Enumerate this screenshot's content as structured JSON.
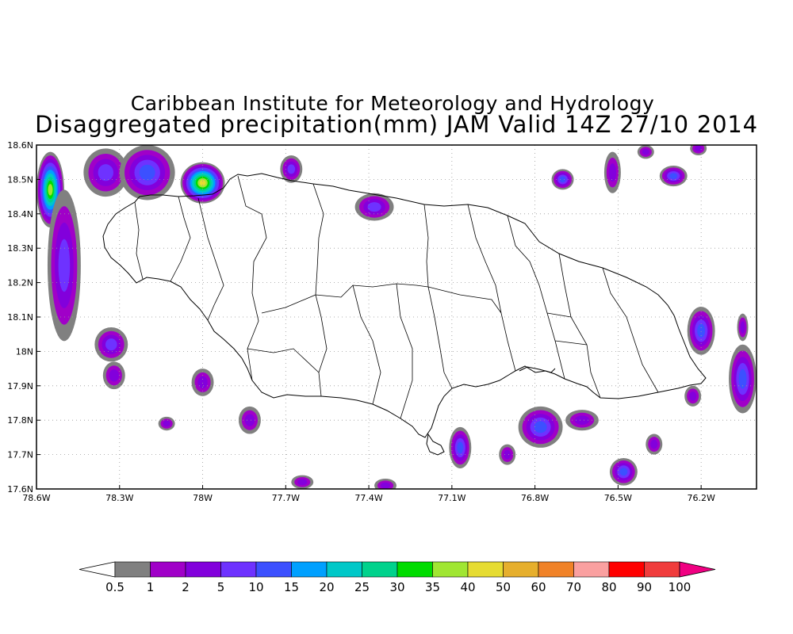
{
  "title": "Caribbean Institute for Meteorology and Hydrology",
  "subtitle": "Disaggregated precipitation(mm) JAM Valid 14Z 27/10 2014",
  "map": {
    "lon_range": [
      -78.6,
      -76.0
    ],
    "lat_range": [
      17.6,
      18.6
    ],
    "lon_ticks": [
      {
        "value": -78.6,
        "label": "78.6W"
      },
      {
        "value": -78.3,
        "label": "78.3W"
      },
      {
        "value": -78.0,
        "label": "78W"
      },
      {
        "value": -77.7,
        "label": "77.7W"
      },
      {
        "value": -77.4,
        "label": "77.4W"
      },
      {
        "value": -77.1,
        "label": "77.1W"
      },
      {
        "value": -76.8,
        "label": "76.8W"
      },
      {
        "value": -76.5,
        "label": "76.5W"
      },
      {
        "value": -76.2,
        "label": "76.2W"
      }
    ],
    "lat_ticks": [
      {
        "value": 18.6,
        "label": "18.6N"
      },
      {
        "value": 18.5,
        "label": "18.5N"
      },
      {
        "value": 18.4,
        "label": "18.4N"
      },
      {
        "value": 18.3,
        "label": "18.3N"
      },
      {
        "value": 18.2,
        "label": "18.2N"
      },
      {
        "value": 18.1,
        "label": "18.1N"
      },
      {
        "value": 18.0,
        "label": "18N"
      },
      {
        "value": 17.9,
        "label": "17.9N"
      },
      {
        "value": 17.8,
        "label": "17.8N"
      },
      {
        "value": 17.7,
        "label": "17.7N"
      },
      {
        "value": 17.6,
        "label": "17.6N"
      }
    ],
    "grid": true,
    "precip_cells": [
      {
        "lon": -78.55,
        "lat": 18.47,
        "rx": 0.05,
        "ry": 0.11,
        "level": 10,
        "peak": 35
      },
      {
        "lon": -78.5,
        "lat": 18.25,
        "rx": 0.06,
        "ry": 0.22,
        "level": 2,
        "peak": 5
      },
      {
        "lon": -78.35,
        "lat": 18.52,
        "rx": 0.08,
        "ry": 0.07,
        "level": 2,
        "peak": 5
      },
      {
        "lon": -78.2,
        "lat": 18.52,
        "rx": 0.1,
        "ry": 0.08,
        "level": 2,
        "peak": 10
      },
      {
        "lon": -78.0,
        "lat": 18.49,
        "rx": 0.08,
        "ry": 0.06,
        "level": 2,
        "peak": 40
      },
      {
        "lon": -77.68,
        "lat": 18.53,
        "rx": 0.04,
        "ry": 0.04,
        "level": 2,
        "peak": 5
      },
      {
        "lon": -77.38,
        "lat": 18.42,
        "rx": 0.07,
        "ry": 0.04,
        "level": 2,
        "peak": 5
      },
      {
        "lon": -78.33,
        "lat": 18.02,
        "rx": 0.06,
        "ry": 0.05,
        "level": 2,
        "peak": 5
      },
      {
        "lon": -78.32,
        "lat": 17.93,
        "rx": 0.04,
        "ry": 0.04,
        "level": 2,
        "peak": 2
      },
      {
        "lon": -78.0,
        "lat": 17.91,
        "rx": 0.04,
        "ry": 0.04,
        "level": 2,
        "peak": 2
      },
      {
        "lon": -78.13,
        "lat": 17.79,
        "rx": 0.03,
        "ry": 0.02,
        "level": 2,
        "peak": 2
      },
      {
        "lon": -77.83,
        "lat": 17.8,
        "rx": 0.04,
        "ry": 0.04,
        "level": 2,
        "peak": 2
      },
      {
        "lon": -77.64,
        "lat": 17.62,
        "rx": 0.04,
        "ry": 0.02,
        "level": 2,
        "peak": 2
      },
      {
        "lon": -77.34,
        "lat": 17.61,
        "rx": 0.04,
        "ry": 0.02,
        "level": 2,
        "peak": 2
      },
      {
        "lon": -77.07,
        "lat": 17.72,
        "rx": 0.04,
        "ry": 0.06,
        "level": 2,
        "peak": 10
      },
      {
        "lon": -76.9,
        "lat": 17.7,
        "rx": 0.03,
        "ry": 0.03,
        "level": 2,
        "peak": 2
      },
      {
        "lon": -76.78,
        "lat": 17.78,
        "rx": 0.08,
        "ry": 0.06,
        "level": 2,
        "peak": 10
      },
      {
        "lon": -76.63,
        "lat": 17.8,
        "rx": 0.06,
        "ry": 0.03,
        "level": 2,
        "peak": 2
      },
      {
        "lon": -76.48,
        "lat": 17.65,
        "rx": 0.05,
        "ry": 0.04,
        "level": 2,
        "peak": 10
      },
      {
        "lon": -76.37,
        "lat": 17.73,
        "rx": 0.03,
        "ry": 0.03,
        "level": 2,
        "peak": 2
      },
      {
        "lon": -76.7,
        "lat": 18.5,
        "rx": 0.04,
        "ry": 0.03,
        "level": 2,
        "peak": 10
      },
      {
        "lon": -76.52,
        "lat": 18.52,
        "rx": 0.03,
        "ry": 0.06,
        "level": 2,
        "peak": 2
      },
      {
        "lon": -76.4,
        "lat": 18.58,
        "rx": 0.03,
        "ry": 0.02,
        "level": 2,
        "peak": 2
      },
      {
        "lon": -76.3,
        "lat": 18.51,
        "rx": 0.05,
        "ry": 0.03,
        "level": 2,
        "peak": 10
      },
      {
        "lon": -76.21,
        "lat": 18.59,
        "rx": 0.03,
        "ry": 0.02,
        "level": 2,
        "peak": 2
      },
      {
        "lon": -76.2,
        "lat": 18.06,
        "rx": 0.05,
        "ry": 0.07,
        "level": 2,
        "peak": 10
      },
      {
        "lon": -76.05,
        "lat": 17.92,
        "rx": 0.05,
        "ry": 0.1,
        "level": 2,
        "peak": 10
      },
      {
        "lon": -76.05,
        "lat": 18.07,
        "rx": 0.02,
        "ry": 0.04,
        "level": 2,
        "peak": 2
      },
      {
        "lon": -76.23,
        "lat": 17.87,
        "rx": 0.03,
        "ry": 0.03,
        "level": 2,
        "peak": 2
      }
    ]
  },
  "colorbar": {
    "labels": [
      "0.5",
      "1",
      "2",
      "5",
      "10",
      "15",
      "20",
      "25",
      "30",
      "35",
      "40",
      "50",
      "60",
      "70",
      "80",
      "90",
      "100"
    ],
    "colors": [
      "#808080",
      "#a000c8",
      "#8200dc",
      "#6e32ff",
      "#3c50ff",
      "#00a0ff",
      "#00c8c8",
      "#00d28c",
      "#00dc00",
      "#a0e632",
      "#e6dc32",
      "#e6af2d",
      "#f08228",
      "#faa0a0",
      "#ff0000",
      "#f03c3c",
      "#f00082"
    ],
    "under_color": "#ffffff",
    "over_color": "#f00082"
  }
}
